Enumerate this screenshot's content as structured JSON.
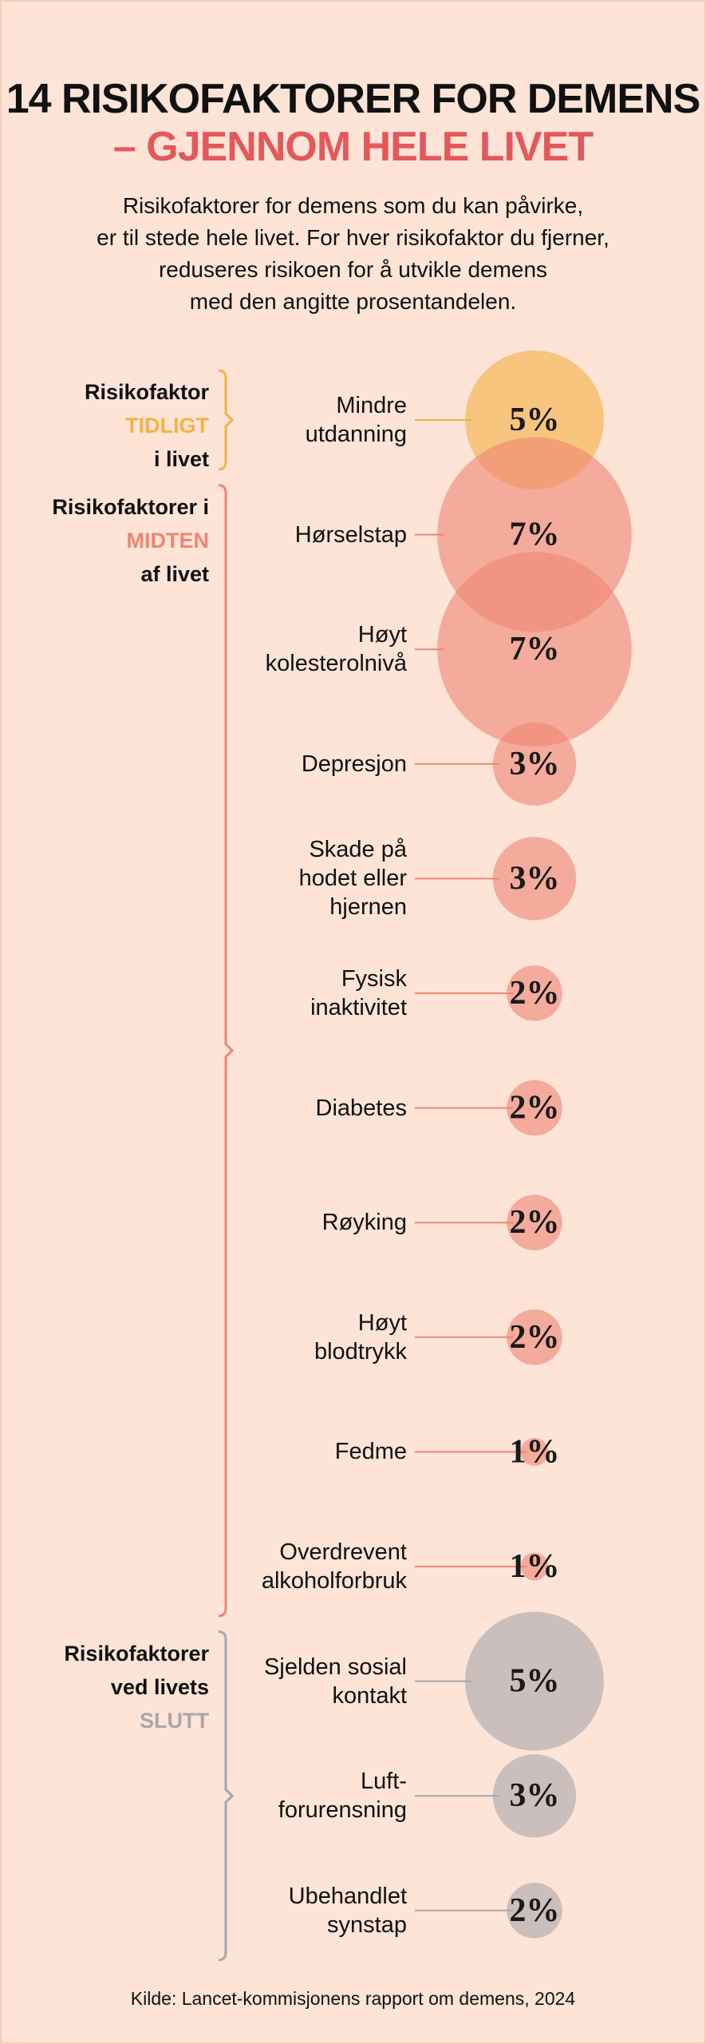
{
  "chart_data": {
    "type": "bubble",
    "title": "14 RISIKOFAKTORER FOR DEMENS",
    "subtitle": "– GJENNOM HELE LIVET",
    "description": "Risikofaktorer for demens som du kan påvirke,\ner til stede hele livet. For hver risikofaktor du fjerner,\nreduseres risikoen for å utvikle demens\nmed den angitte prosentandelen.",
    "series": [
      {
        "name": [
          "Risikofaktor",
          "TIDLIGT",
          "i livet"
        ],
        "color": "#f5b142",
        "categories": [
          "Mindre\nutdanning"
        ],
        "values": [
          5
        ],
        "value_labels": [
          "5%"
        ]
      },
      {
        "name": [
          "Risikofaktorer i",
          "MIDTEN",
          "af livet"
        ],
        "color": "#ee8575",
        "categories": [
          "Hørselstap",
          "Høyt\nkolesterolnivå",
          "Depresjon",
          "Skade på\nhodet eller\nhjernen",
          "Fysisk\ninaktivitet",
          "Diabetes",
          "Røyking",
          "Høyt\nblodtrykk",
          "Fedme",
          "Overdrevent\nalkoholforbruk"
        ],
        "values": [
          7,
          7,
          3,
          3,
          2,
          2,
          2,
          2,
          1,
          1
        ],
        "value_labels": [
          "7%",
          "7%",
          "3%",
          "3%",
          "2%",
          "2%",
          "2%",
          "2%",
          "1%",
          "1%"
        ]
      },
      {
        "name": [
          "Risikofaktorer",
          "ved livets",
          "SLUTT"
        ],
        "color": "#a8a6ab",
        "categories": [
          "Sjelden sosial\nkontakt",
          "Luft-\nforurensning",
          "Ubehandlet\nsynstap"
        ],
        "values": [
          5,
          3,
          2
        ],
        "value_labels": [
          "5%",
          "3%",
          "2%"
        ]
      }
    ],
    "source": "Kilde: Lancet-kommisjonens rapport om demens, 2024"
  }
}
